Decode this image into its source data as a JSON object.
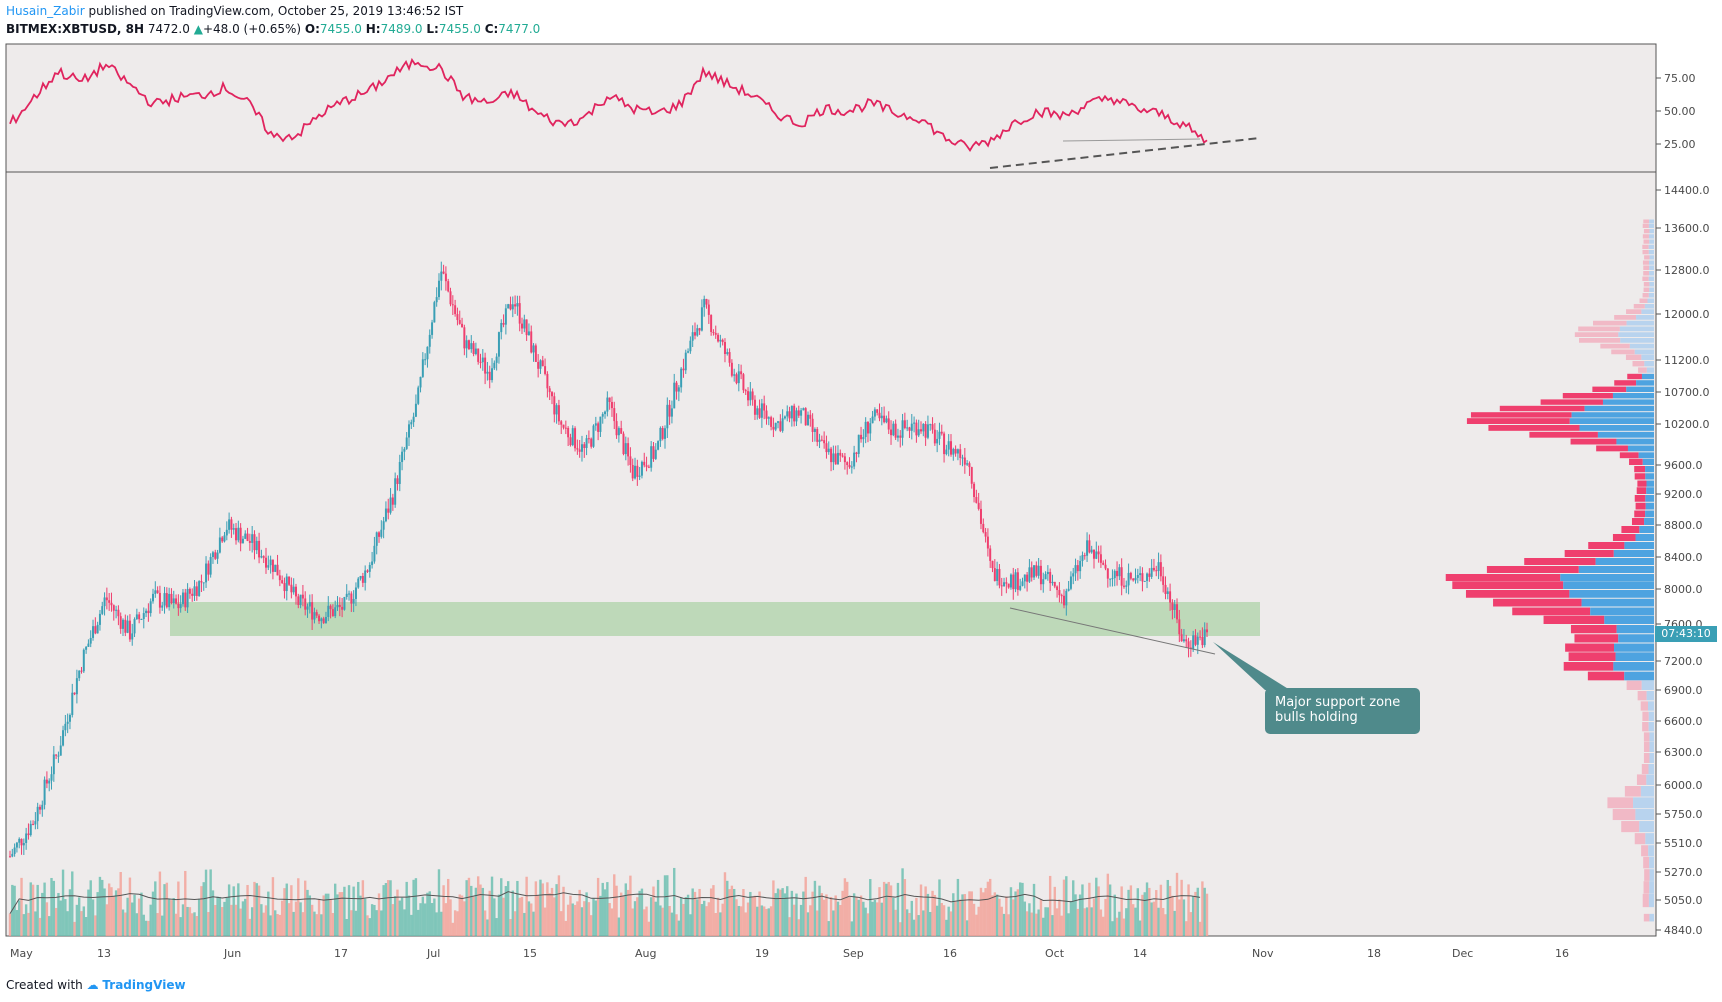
{
  "header": {
    "author": "Husain_Zabir",
    "published": "published on TradingView.com, October 25, 2019 13:46:52 IST",
    "symbol": "BITMEX:XBTUSD, 8H",
    "last": "7472.0",
    "change": "+48.0 (+0.65%)",
    "o_label": "O:",
    "o": "7455.0",
    "h_label": "H:",
    "h": "7489.0",
    "l_label": "L:",
    "l": "7455.0",
    "c_label": "C:",
    "c": "7477.0"
  },
  "footer": {
    "created": "Created with",
    "brand": "TradingView"
  },
  "annotation": {
    "line1": "Major support zone",
    "line2": "bulls holding"
  },
  "price_tag": "07:43:10",
  "colors": {
    "up": "#26a69a",
    "upc": "#3a9fb5",
    "down": "#ef3f6e",
    "rsi": "#e0245e",
    "bg": "#eeebeb",
    "zone": "#b5d6b0"
  },
  "chart_data": {
    "type": "candlestick",
    "title": "BITMEX:XBTUSD, 8H",
    "x_ticks": [
      "May",
      "13",
      "Jun",
      "17",
      "Jul",
      "15",
      "Aug",
      "19",
      "Sep",
      "16",
      "Oct",
      "14",
      "Nov",
      "18",
      "Dec",
      "16"
    ],
    "price_ticks": [
      "14400.0",
      "13600.0",
      "12800.0",
      "12000.0",
      "11200.0",
      "10700.0",
      "10200.0",
      "9600.0",
      "9200.0",
      "8800.0",
      "8400.0",
      "8000.0",
      "7600.0",
      "7200.0",
      "6900.0",
      "6600.0",
      "6300.0",
      "6000.0",
      "5750.0",
      "5510.0",
      "5270.0",
      "5050.0",
      "4840.0"
    ],
    "rsi_ticks": [
      "75.00",
      "50.00",
      "25.00"
    ],
    "support_zone": [
      7480,
      7870
    ],
    "approx_closes": [
      5400,
      5700,
      6300,
      7200,
      7900,
      7500,
      7900,
      7800,
      8100,
      8800,
      8600,
      8300,
      7850,
      7700,
      7800,
      8300,
      9200,
      10500,
      12800,
      11500,
      11000,
      12300,
      11200,
      10200,
      9800,
      10500,
      9500,
      9800,
      11000,
      12100,
      11200,
      10500,
      10200,
      10400,
      9800,
      9600,
      10300,
      10100,
      10200,
      9900,
      9700,
      8200,
      8100,
      8200,
      7900,
      8500,
      8200,
      8100,
      8300,
      7400,
      7470
    ],
    "rsi_values": [
      40,
      60,
      80,
      72,
      85,
      70,
      55,
      60,
      62,
      68,
      55,
      30,
      32,
      48,
      58,
      65,
      78,
      88,
      82,
      60,
      56,
      64,
      48,
      40,
      45,
      62,
      52,
      48,
      55,
      80,
      70,
      62,
      48,
      40,
      52,
      50,
      56,
      48,
      45,
      30,
      22,
      28,
      42,
      50,
      46,
      55,
      60,
      52,
      48,
      40,
      26
    ],
    "volume_profile_note": "horizontal volume profile on right, peak near 8000"
  }
}
